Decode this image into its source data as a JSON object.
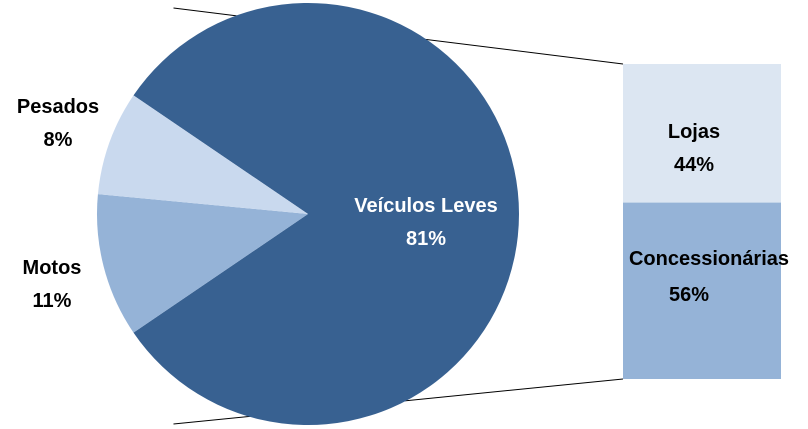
{
  "chart_data": [
    {
      "type": "pie",
      "categories": [
        "Veículos Leves",
        "Motos",
        "Pesados"
      ],
      "values": [
        81,
        11,
        8
      ],
      "data_labels": [
        "81%",
        "11%",
        "8%"
      ],
      "colors": [
        "#386191",
        "#95B3D7",
        "#C9D9EE"
      ],
      "label_colors": [
        "#FFFFFF",
        "#000000",
        "#000000"
      ],
      "title": ""
    },
    {
      "type": "bar",
      "stacked": true,
      "categories": [
        "Lojas",
        "Concessionárias"
      ],
      "values": [
        44,
        56
      ],
      "data_labels": [
        "44%",
        "56%"
      ],
      "colors": [
        "#DCE6F2",
        "#95B3D7"
      ],
      "title": ""
    }
  ]
}
